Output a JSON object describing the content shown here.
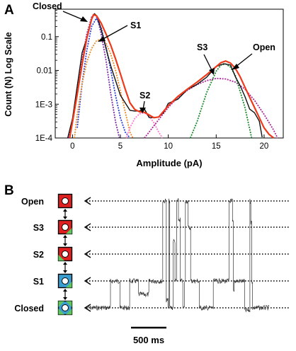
{
  "panel_a": {
    "label": "A",
    "annotations": [
      "Closed",
      "S1",
      "S2",
      "S3",
      "Open"
    ]
  },
  "panel_b": {
    "label": "B",
    "states": [
      "Open",
      "S3",
      "S2",
      "S1",
      "Closed"
    ],
    "scale_bar_label": "500 ms"
  },
  "colors": {
    "data": "#111111",
    "fit_total": "#ee3a1a",
    "closed": "#7b2aa8",
    "s1_blue": "#2b3fd6",
    "s1_orange": "#f08c24",
    "s2": "#ff7ad0",
    "s3_magenta": "#b0249a",
    "open": "#1a8a2a",
    "icon_red": "#e02020",
    "icon_green": "#5fc55f",
    "icon_blue": "#3a9fd0"
  },
  "chart_data": [
    {
      "type": "line",
      "xlabel": "Amplitude (pA)",
      "ylabel": "Count (N) Log Scale",
      "x_ticks": [
        "0",
        "5",
        "10",
        "15",
        "20"
      ],
      "y_ticks": [
        "0.1",
        "0.01",
        "1E-3",
        "1E-4"
      ],
      "xlim": [
        -1.8,
        22
      ],
      "ylim": [
        0.0001,
        0.65
      ],
      "y_scale": "log",
      "series": [
        {
          "color": "#111111",
          "x": [
            -0.5,
            0,
            1,
            1.5,
            2,
            2.3,
            2.6,
            3,
            3.5,
            4,
            5,
            6,
            6.5,
            7,
            7.5,
            8,
            8.5,
            9,
            9.5,
            10,
            11,
            12,
            13,
            14,
            15,
            15.8,
            16.5,
            17,
            17.5,
            18,
            18.5,
            19,
            19.5,
            19.8
          ],
          "y": [
            0.0001,
            0.0004,
            0.03,
            0.1,
            0.3,
            0.5,
            0.4,
            0.15,
            0.05,
            0.012,
            0.002,
            0.00065,
            0.0006,
            0.0007,
            0.00065,
            0.00045,
            0.00038,
            0.00042,
            0.0006,
            0.00095,
            0.0016,
            0.0025,
            0.004,
            0.0065,
            0.012,
            0.018,
            0.013,
            0.007,
            0.0035,
            0.0016,
            0.0008,
            0.0005,
            0.00035,
            0.0001
          ]
        },
        {
          "color": "#ee3a1a",
          "x": [
            -0.3,
            0,
            0.5,
            1,
            1.5,
            2,
            2.2,
            2.5,
            3,
            3.5,
            4,
            4.5,
            5,
            5.5,
            6,
            6.5,
            7,
            7.5,
            8,
            8.5,
            9,
            10,
            11,
            12,
            13,
            14,
            15,
            15.5,
            16,
            16.5,
            17,
            17.5,
            18,
            18.5,
            19,
            19.5,
            20,
            20.5,
            21
          ],
          "y": [
            0.0001,
            0.0003,
            0.002,
            0.015,
            0.09,
            0.33,
            0.45,
            0.42,
            0.25,
            0.12,
            0.055,
            0.022,
            0.008,
            0.0028,
            0.0011,
            0.0007,
            0.0006,
            0.00058,
            0.00048,
            0.0004,
            0.00042,
            0.0009,
            0.0017,
            0.0028,
            0.0045,
            0.0075,
            0.013,
            0.017,
            0.019,
            0.0165,
            0.0115,
            0.0065,
            0.0032,
            0.0016,
            0.0008,
            0.0004,
            0.0002,
            0.00013,
            0.0001
          ]
        },
        {
          "color": "#7b2aa8",
          "x": [
            -0.4,
            0,
            0.5,
            1,
            1.5,
            2,
            2.3,
            2.6,
            3,
            3.5,
            4,
            4.5,
            4.9
          ],
          "y": [
            0.0001,
            0.0003,
            0.002,
            0.02,
            0.12,
            0.38,
            0.45,
            0.35,
            0.12,
            0.02,
            0.002,
            0.0003,
            0.0001
          ]
        },
        {
          "color": "#2b3fd6",
          "x": [
            0.5,
            1,
            1.5,
            2,
            2.5,
            3,
            3.5,
            4,
            4.5,
            5,
            5.5,
            6
          ],
          "y": [
            0.0002,
            0.004,
            0.04,
            0.2,
            0.35,
            0.18,
            0.05,
            0.01,
            0.0018,
            0.0004,
            0.00015,
            0.0001
          ]
        },
        {
          "color": "#f08c24",
          "x": [
            0.2,
            0.5,
            1,
            1.5,
            2,
            2.5,
            3,
            3.5,
            4,
            4.5,
            5,
            5.5,
            6,
            6.3
          ],
          "y": [
            0.0001,
            0.0005,
            0.004,
            0.018,
            0.045,
            0.075,
            0.085,
            0.065,
            0.03,
            0.01,
            0.0025,
            0.0006,
            0.00015,
            0.0001
          ]
        },
        {
          "color": "#ff7ad0",
          "x": [
            5.6,
            6,
            6.5,
            7,
            7.5,
            8,
            8.5,
            9,
            9.4
          ],
          "y": [
            0.0001,
            0.0002,
            0.00038,
            0.00052,
            0.00055,
            0.00045,
            0.00028,
            0.00015,
            0.0001
          ]
        },
        {
          "color": "#b0249a",
          "x": [
            7.5,
            8,
            9,
            10,
            11,
            12,
            13,
            14,
            15,
            16,
            17,
            18,
            19,
            20,
            21,
            21.4
          ],
          "y": [
            0.0001,
            0.00015,
            0.00035,
            0.0008,
            0.0016,
            0.0026,
            0.0038,
            0.005,
            0.0058,
            0.0056,
            0.0045,
            0.0028,
            0.0013,
            0.0005,
            0.00017,
            0.0001
          ]
        },
        {
          "color": "#1a8a2a",
          "x": [
            12.3,
            13,
            14,
            15,
            15.5,
            16,
            16.5,
            17,
            18,
            18.7
          ],
          "y": [
            0.0001,
            0.0003,
            0.0022,
            0.0095,
            0.0145,
            0.0155,
            0.0125,
            0.007,
            0.0008,
            0.0001
          ]
        }
      ]
    },
    {
      "type": "line",
      "title": "",
      "y_categories": [
        "Open",
        "S3",
        "S2",
        "S1",
        "Closed"
      ],
      "trace": {
        "color": "#333333",
        "x_ms": [
          0,
          40,
          80,
          120,
          130,
          175,
          185,
          230,
          240,
          280,
          290,
          340,
          350,
          420,
          430,
          450,
          460,
          465,
          470,
          480,
          490,
          500,
          510,
          520,
          530,
          545,
          555,
          560,
          575,
          590,
          600,
          615,
          640,
          700,
          720,
          740,
          760,
          800,
          810,
          830,
          835,
          840,
          845,
          850,
          860,
          900,
          920,
          930,
          935,
          940,
          945,
          960,
          1000,
          1040
        ],
        "level": [
          0,
          0,
          0,
          0,
          1,
          1,
          0,
          0,
          1,
          1,
          0.5,
          0.5,
          1,
          1,
          4,
          0.3,
          0,
          4,
          0,
          0,
          2.5,
          1,
          4,
          3.3,
          1,
          0,
          1,
          4,
          3,
          1,
          1,
          1,
          0,
          0,
          1,
          1,
          1,
          1,
          4,
          3.2,
          0.6,
          1,
          1,
          1,
          1,
          -0.1,
          -0.1,
          4,
          3.2,
          1,
          0,
          0,
          0,
          0
        ]
      }
    }
  ]
}
